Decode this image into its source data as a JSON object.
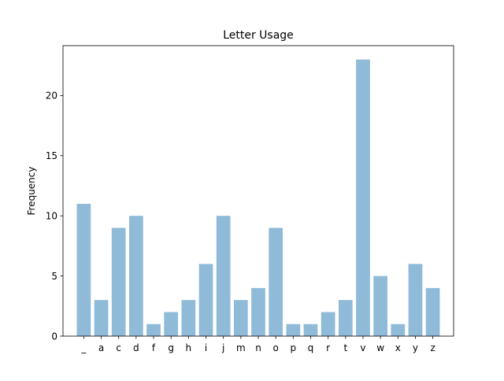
{
  "chart_data": {
    "type": "bar",
    "title": "Letter Usage",
    "xlabel": "",
    "ylabel": "Frequency",
    "categories": [
      "_",
      "a",
      "c",
      "d",
      "f",
      "g",
      "h",
      "i",
      "j",
      "m",
      "n",
      "o",
      "p",
      "q",
      "r",
      "t",
      "v",
      "w",
      "x",
      "y",
      "z"
    ],
    "values": [
      11,
      3,
      9,
      10,
      1,
      2,
      3,
      6,
      10,
      3,
      4,
      9,
      1,
      1,
      2,
      3,
      23,
      5,
      1,
      6,
      4
    ],
    "ylim": [
      0,
      24.15
    ],
    "yticks": [
      0,
      5,
      10,
      15,
      20
    ],
    "bar_color": "#8fbbd9",
    "grid": false,
    "legend": "none"
  }
}
